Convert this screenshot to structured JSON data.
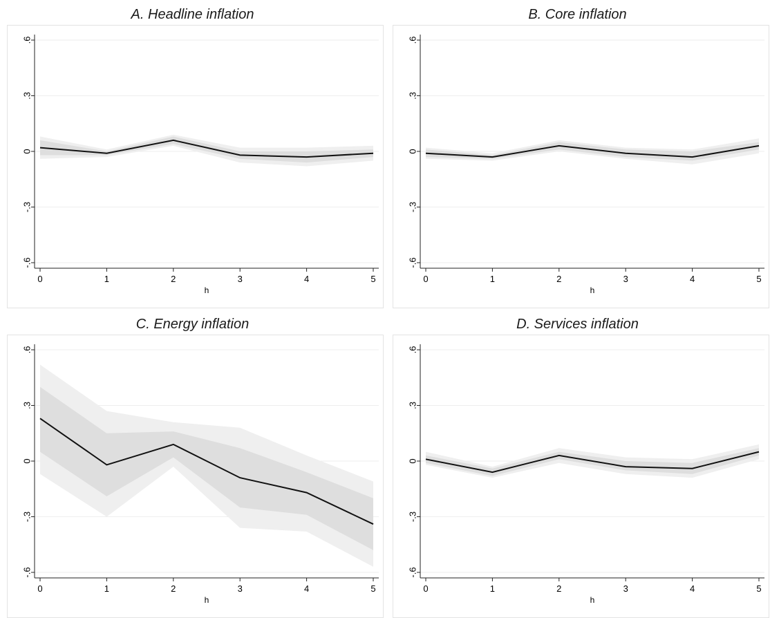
{
  "chart_data": [
    {
      "type": "line",
      "title": "A. Headline inflation",
      "xlabel": "h",
      "ylabel": "",
      "x": [
        0,
        1,
        2,
        3,
        4,
        5
      ],
      "xticks": [
        "0",
        "1",
        "2",
        "3",
        "4",
        "5"
      ],
      "yticks": [
        {
          "value": -0.6,
          "label": "-.6"
        },
        {
          "value": -0.3,
          "label": "-.3"
        },
        {
          "value": 0,
          "label": "0"
        },
        {
          "value": 0.3,
          "label": ".3"
        },
        {
          "value": 0.6,
          "label": ".6"
        }
      ],
      "ylim": [
        -0.6,
        0.6
      ],
      "grid": true,
      "series": [
        {
          "values": [
            0.02,
            -0.01,
            0.06,
            -0.02,
            -0.03,
            -0.01
          ]
        }
      ],
      "bands": [
        {
          "lower": [
            -0.04,
            -0.03,
            0.03,
            -0.06,
            -0.08,
            -0.05
          ],
          "upper": [
            0.08,
            0.01,
            0.09,
            0.02,
            0.02,
            0.03
          ],
          "color": "#efefef"
        },
        {
          "lower": [
            -0.02,
            -0.02,
            0.04,
            -0.04,
            -0.06,
            -0.03
          ],
          "upper": [
            0.06,
            0.0,
            0.08,
            0.0,
            0.0,
            0.01
          ],
          "color": "#dedede"
        }
      ]
    },
    {
      "type": "line",
      "title": "B. Core inflation",
      "xlabel": "h",
      "ylabel": "",
      "x": [
        0,
        1,
        2,
        3,
        4,
        5
      ],
      "xticks": [
        "0",
        "1",
        "2",
        "3",
        "4",
        "5"
      ],
      "yticks": [
        {
          "value": -0.6,
          "label": "-.6"
        },
        {
          "value": -0.3,
          "label": "-.3"
        },
        {
          "value": 0,
          "label": "0"
        },
        {
          "value": 0.3,
          "label": ".3"
        },
        {
          "value": 0.6,
          "label": ".6"
        }
      ],
      "ylim": [
        -0.6,
        0.6
      ],
      "grid": true,
      "series": [
        {
          "values": [
            -0.01,
            -0.03,
            0.03,
            -0.01,
            -0.03,
            0.03
          ]
        }
      ],
      "bands": [
        {
          "lower": [
            -0.04,
            -0.05,
            0.0,
            -0.04,
            -0.07,
            -0.01
          ],
          "upper": [
            0.02,
            -0.01,
            0.06,
            0.02,
            0.01,
            0.07
          ],
          "color": "#efefef"
        },
        {
          "lower": [
            -0.03,
            -0.04,
            0.01,
            -0.03,
            -0.05,
            0.01
          ],
          "upper": [
            0.01,
            -0.02,
            0.05,
            0.01,
            0.0,
            0.05
          ],
          "color": "#dedede"
        }
      ]
    },
    {
      "type": "line",
      "title": "C. Energy inflation",
      "xlabel": "h",
      "ylabel": "",
      "x": [
        0,
        1,
        2,
        3,
        4,
        5
      ],
      "xticks": [
        "0",
        "1",
        "2",
        "3",
        "4",
        "5"
      ],
      "yticks": [
        {
          "value": -0.6,
          "label": "-.6"
        },
        {
          "value": -0.3,
          "label": "-.3"
        },
        {
          "value": 0,
          "label": "0"
        },
        {
          "value": 0.3,
          "label": ".3"
        },
        {
          "value": 0.6,
          "label": ".6"
        }
      ],
      "ylim": [
        -0.6,
        0.6
      ],
      "grid": true,
      "series": [
        {
          "values": [
            0.23,
            -0.02,
            0.09,
            -0.09,
            -0.17,
            -0.34
          ]
        }
      ],
      "bands": [
        {
          "lower": [
            -0.07,
            -0.3,
            -0.03,
            -0.36,
            -0.38,
            -0.57
          ],
          "upper": [
            0.52,
            0.27,
            0.21,
            0.18,
            0.03,
            -0.11
          ],
          "color": "#efefef"
        },
        {
          "lower": [
            0.05,
            -0.19,
            0.02,
            -0.25,
            -0.29,
            -0.48
          ],
          "upper": [
            0.4,
            0.15,
            0.16,
            0.07,
            -0.06,
            -0.2
          ],
          "color": "#dedede"
        }
      ]
    },
    {
      "type": "line",
      "title": "D. Services inflation",
      "xlabel": "h",
      "ylabel": "",
      "x": [
        0,
        1,
        2,
        3,
        4,
        5
      ],
      "xticks": [
        "0",
        "1",
        "2",
        "3",
        "4",
        "5"
      ],
      "yticks": [
        {
          "value": -0.6,
          "label": "-.6"
        },
        {
          "value": -0.3,
          "label": "-.3"
        },
        {
          "value": 0,
          "label": "0"
        },
        {
          "value": 0.3,
          "label": ".3"
        },
        {
          "value": 0.6,
          "label": ".6"
        }
      ],
      "ylim": [
        -0.6,
        0.6
      ],
      "grid": true,
      "series": [
        {
          "values": [
            0.01,
            -0.06,
            0.03,
            -0.03,
            -0.04,
            0.05
          ]
        }
      ],
      "bands": [
        {
          "lower": [
            -0.02,
            -0.09,
            -0.01,
            -0.07,
            -0.09,
            0.01
          ],
          "upper": [
            0.05,
            -0.03,
            0.07,
            0.02,
            0.01,
            0.09
          ],
          "color": "#efefef"
        },
        {
          "lower": [
            -0.01,
            -0.08,
            0.01,
            -0.05,
            -0.07,
            0.03
          ],
          "upper": [
            0.03,
            -0.04,
            0.05,
            0.0,
            -0.01,
            0.07
          ],
          "color": "#dedede"
        }
      ]
    }
  ]
}
